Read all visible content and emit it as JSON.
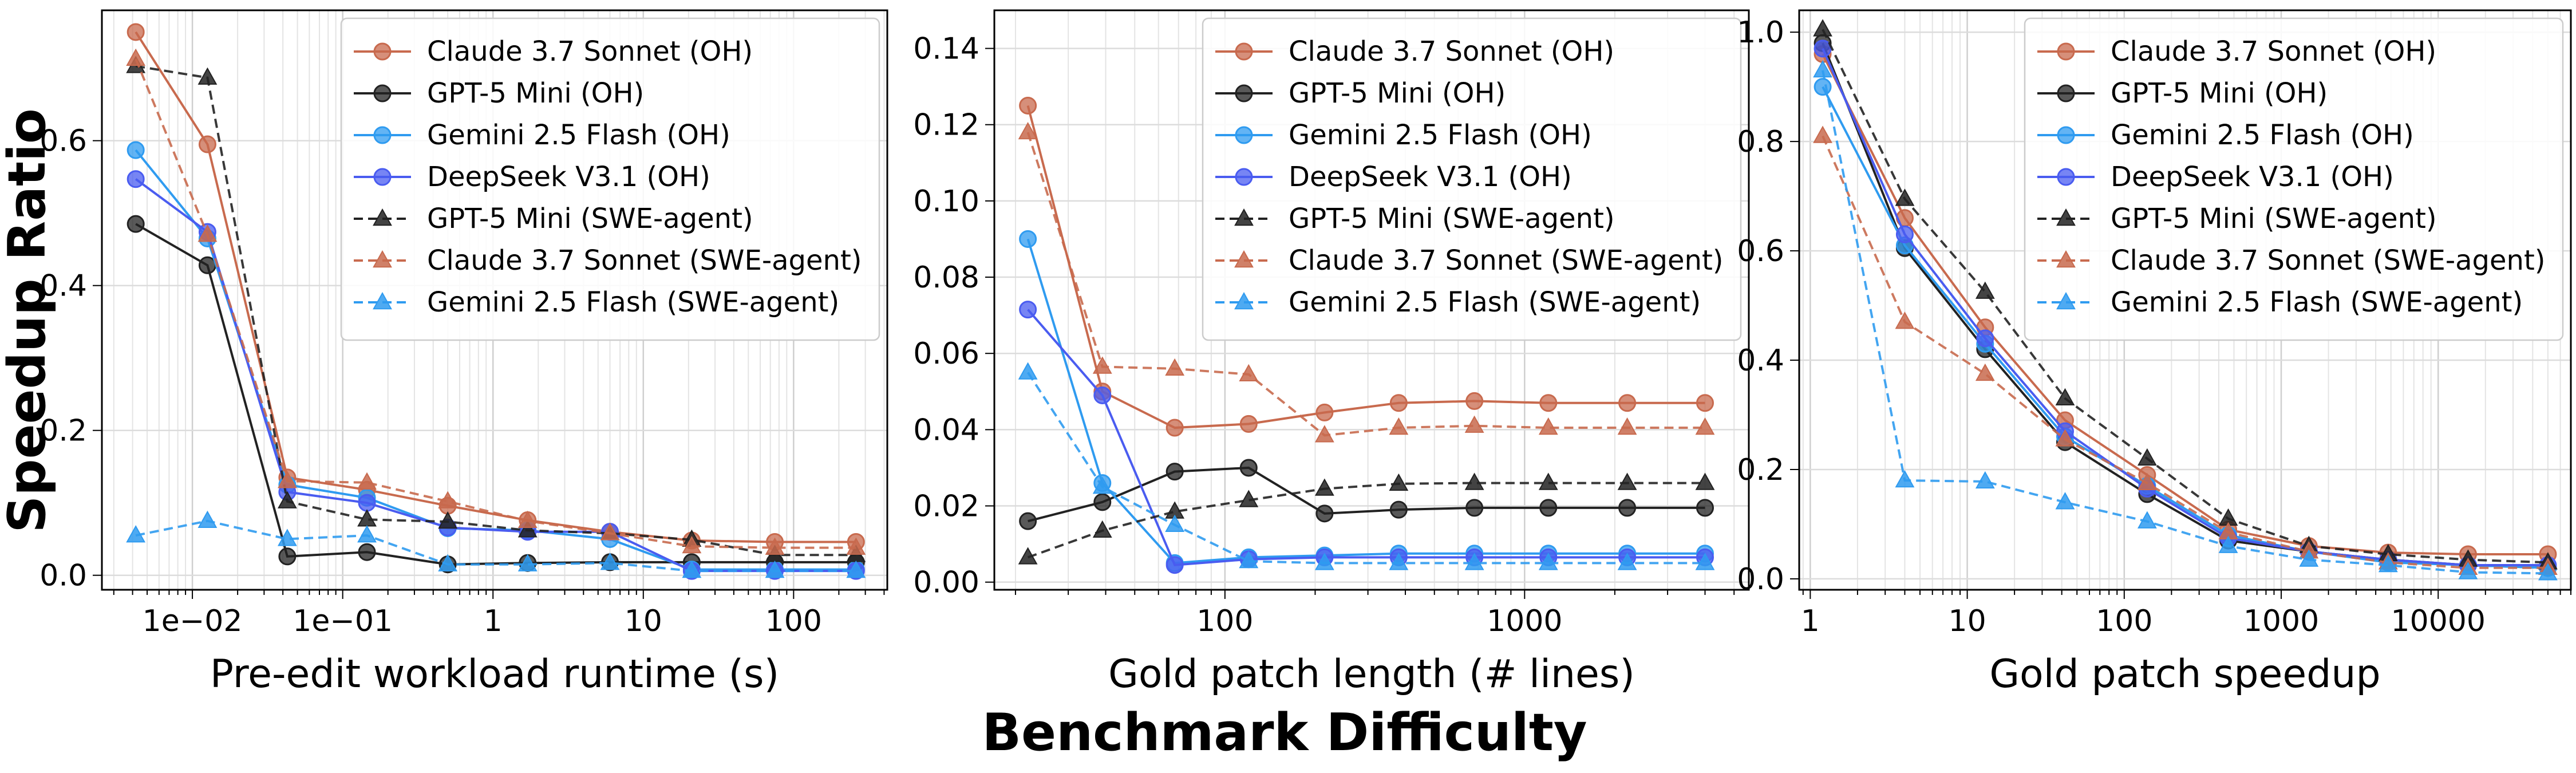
{
  "figure": {
    "ylabel": "Speedup Ratio",
    "suptitle": "Benchmark Difficulty"
  },
  "series_styles": [
    {
      "name": "Claude 3.7 Sonnet (OH)",
      "color": "#c86a4e",
      "marker": "circle",
      "dashed": false
    },
    {
      "name": "GPT-5 Mini (OH)",
      "color": "#222222",
      "marker": "circle",
      "dashed": false
    },
    {
      "name": "Gemini 2.5 Flash (OH)",
      "color": "#2f9bf0",
      "marker": "circle",
      "dashed": false
    },
    {
      "name": "DeepSeek V3.1 (OH)",
      "color": "#4a5cf0",
      "marker": "circle",
      "dashed": false
    },
    {
      "name": "GPT-5 Mini (SWE-agent)",
      "color": "#222222",
      "marker": "triangle",
      "dashed": true
    },
    {
      "name": "Claude 3.7 Sonnet (SWE-agent)",
      "color": "#c86a4e",
      "marker": "triangle",
      "dashed": true
    },
    {
      "name": "Gemini 2.5 Flash (SWE-agent)",
      "color": "#2f9bf0",
      "marker": "triangle",
      "dashed": true
    }
  ],
  "chart_data": [
    {
      "type": "line",
      "xlabel": "Pre-edit workload runtime (s)",
      "xscale": "log",
      "xlim": [
        0.0025,
        420
      ],
      "ylim": [
        -0.02,
        0.78
      ],
      "xticks": [
        0.01,
        0.1,
        1,
        10,
        100
      ],
      "xtick_labels": [
        "1e−02",
        "1e−01",
        "1",
        "10",
        "100"
      ],
      "yticks": [
        0.0,
        0.2,
        0.4,
        0.6
      ],
      "ytick_labels": [
        "0.0",
        "0.2",
        "0.4",
        "0.6"
      ],
      "legend_position": "top-right",
      "x": [
        0.0042,
        0.0126,
        0.0428,
        0.145,
        0.5,
        1.7,
        6.0,
        21,
        75,
        260
      ],
      "series": [
        {
          "name": "Claude 3.7 Sonnet (OH)",
          "values": [
            0.75,
            0.595,
            0.135,
            0.118,
            0.096,
            0.076,
            0.06,
            0.048,
            0.046,
            0.046
          ]
        },
        {
          "name": "GPT-5 Mini (OH)",
          "values": [
            0.485,
            0.428,
            0.026,
            0.032,
            0.015,
            0.017,
            0.018,
            0.018,
            0.018,
            0.018
          ]
        },
        {
          "name": "Gemini 2.5 Flash (OH)",
          "values": [
            0.587,
            0.465,
            0.125,
            0.107,
            0.065,
            0.062,
            0.05,
            0.008,
            0.008,
            0.008
          ]
        },
        {
          "name": "DeepSeek V3.1 (OH)",
          "values": [
            0.547,
            0.474,
            0.115,
            0.1,
            0.066,
            0.06,
            0.06,
            0.006,
            0.006,
            0.006
          ]
        },
        {
          "name": "GPT-5 Mini (SWE-agent)",
          "values": [
            0.703,
            0.687,
            0.102,
            0.077,
            0.074,
            0.062,
            0.058,
            0.049,
            0.028,
            0.028
          ]
        },
        {
          "name": "Claude 3.7 Sonnet (SWE-agent)",
          "values": [
            0.713,
            0.47,
            0.13,
            0.128,
            0.102,
            0.075,
            0.058,
            0.04,
            0.038,
            0.038
          ]
        },
        {
          "name": "Gemini 2.5 Flash (SWE-agent)",
          "values": [
            0.055,
            0.075,
            0.05,
            0.055,
            0.015,
            0.015,
            0.017,
            0.006,
            0.006,
            0.006
          ]
        }
      ]
    },
    {
      "type": "line",
      "xlabel": "Gold patch length (# lines)",
      "xscale": "log",
      "xlim": [
        17,
        5600
      ],
      "ylim": [
        -0.002,
        0.15
      ],
      "xticks": [
        100,
        1000
      ],
      "xtick_labels": [
        "100",
        "1000"
      ],
      "yticks": [
        0.0,
        0.02,
        0.04,
        0.06,
        0.08,
        0.1,
        0.12,
        0.14
      ],
      "ytick_labels": [
        "0.00",
        "0.02",
        "0.04",
        "0.06",
        "0.08",
        "0.10",
        "0.12",
        "0.14"
      ],
      "legend_position": "top-right",
      "x": [
        22,
        39,
        68,
        120,
        215,
        380,
        680,
        1200,
        2200,
        4000
      ],
      "series": [
        {
          "name": "Claude 3.7 Sonnet (OH)",
          "values": [
            0.125,
            0.05,
            0.0405,
            0.0415,
            0.0445,
            0.047,
            0.0475,
            0.047,
            0.047,
            0.047
          ]
        },
        {
          "name": "GPT-5 Mini (OH)",
          "values": [
            0.016,
            0.021,
            0.029,
            0.03,
            0.018,
            0.019,
            0.0195,
            0.0195,
            0.0195,
            0.0195
          ]
        },
        {
          "name": "Gemini 2.5 Flash (OH)",
          "values": [
            0.09,
            0.026,
            0.005,
            0.0065,
            0.007,
            0.0075,
            0.0075,
            0.0075,
            0.0075,
            0.0075
          ]
        },
        {
          "name": "DeepSeek V3.1 (OH)",
          "values": [
            0.0715,
            0.049,
            0.0045,
            0.006,
            0.0065,
            0.0065,
            0.0065,
            0.0065,
            0.0065,
            0.0065
          ]
        },
        {
          "name": "GPT-5 Mini (SWE-agent)",
          "values": [
            0.0065,
            0.0135,
            0.0185,
            0.0215,
            0.0245,
            0.0258,
            0.026,
            0.026,
            0.026,
            0.026
          ]
        },
        {
          "name": "Claude 3.7 Sonnet (SWE-agent)",
          "values": [
            0.118,
            0.0565,
            0.056,
            0.0545,
            0.0385,
            0.0405,
            0.041,
            0.0405,
            0.0405,
            0.0405
          ]
        },
        {
          "name": "Gemini 2.5 Flash (SWE-agent)",
          "values": [
            0.055,
            0.025,
            0.015,
            0.0055,
            0.005,
            0.005,
            0.005,
            0.005,
            0.005,
            0.005
          ]
        }
      ]
    },
    {
      "type": "line",
      "xlabel": "Gold patch speedup",
      "xscale": "log",
      "xlim": [
        0.85,
        70000
      ],
      "ylim": [
        -0.02,
        1.04
      ],
      "xticks": [
        1,
        10,
        100,
        1000,
        10000
      ],
      "xtick_labels": [
        "1",
        "10",
        "100",
        "1000",
        "10000"
      ],
      "yticks": [
        0.0,
        0.2,
        0.4,
        0.6,
        0.8,
        1.0
      ],
      "ytick_labels": [
        "0.0",
        "0.2",
        "0.4",
        "0.6",
        "0.8",
        "1.0"
      ],
      "legend_position": "top-right",
      "x": [
        1.2,
        4,
        13,
        42,
        140,
        460,
        1500,
        4800,
        15500,
        50000
      ],
      "series": [
        {
          "name": "Claude 3.7 Sonnet (OH)",
          "values": [
            0.96,
            0.66,
            0.46,
            0.29,
            0.19,
            0.09,
            0.06,
            0.048,
            0.045,
            0.045
          ]
        },
        {
          "name": "GPT-5 Mini (OH)",
          "values": [
            0.98,
            0.605,
            0.42,
            0.25,
            0.155,
            0.07,
            0.05,
            0.035,
            0.025,
            0.02
          ]
        },
        {
          "name": "Gemini 2.5 Flash (OH)",
          "values": [
            0.9,
            0.61,
            0.43,
            0.26,
            0.17,
            0.08,
            0.05,
            0.03,
            0.025,
            0.02
          ]
        },
        {
          "name": "DeepSeek V3.1 (OH)",
          "values": [
            0.97,
            0.63,
            0.44,
            0.27,
            0.165,
            0.075,
            0.05,
            0.035,
            0.025,
            0.025
          ]
        },
        {
          "name": "GPT-5 Mini (SWE-agent)",
          "values": [
            1.005,
            0.695,
            0.525,
            0.33,
            0.22,
            0.11,
            0.06,
            0.045,
            0.035,
            0.03
          ]
        },
        {
          "name": "Claude 3.7 Sonnet (SWE-agent)",
          "values": [
            0.81,
            0.47,
            0.375,
            0.255,
            0.175,
            0.085,
            0.05,
            0.03,
            0.02,
            0.02
          ]
        },
        {
          "name": "Gemini 2.5 Flash (SWE-agent)",
          "values": [
            0.93,
            0.18,
            0.178,
            0.14,
            0.105,
            0.06,
            0.035,
            0.025,
            0.012,
            0.01
          ]
        }
      ]
    }
  ]
}
